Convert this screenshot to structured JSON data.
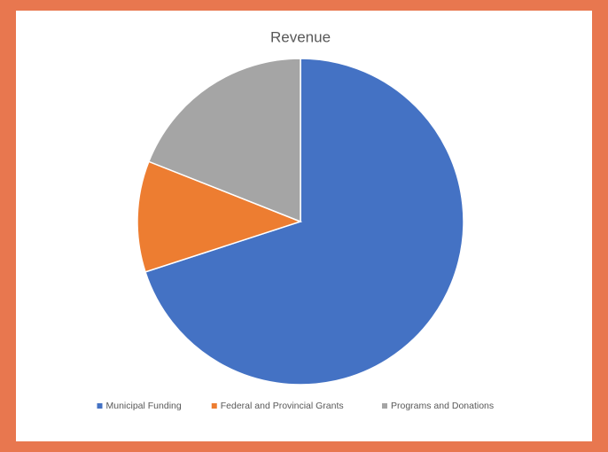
{
  "chart_data": {
    "type": "pie",
    "title": "Revenue",
    "categories": [
      "Municipal Funding",
      "Federal and Provincial Grants",
      "Programs and Donations"
    ],
    "values": [
      70,
      11,
      19
    ],
    "colors": [
      "#4472c4",
      "#ed7d31",
      "#a5a5a5"
    ],
    "legend": "bottom"
  }
}
